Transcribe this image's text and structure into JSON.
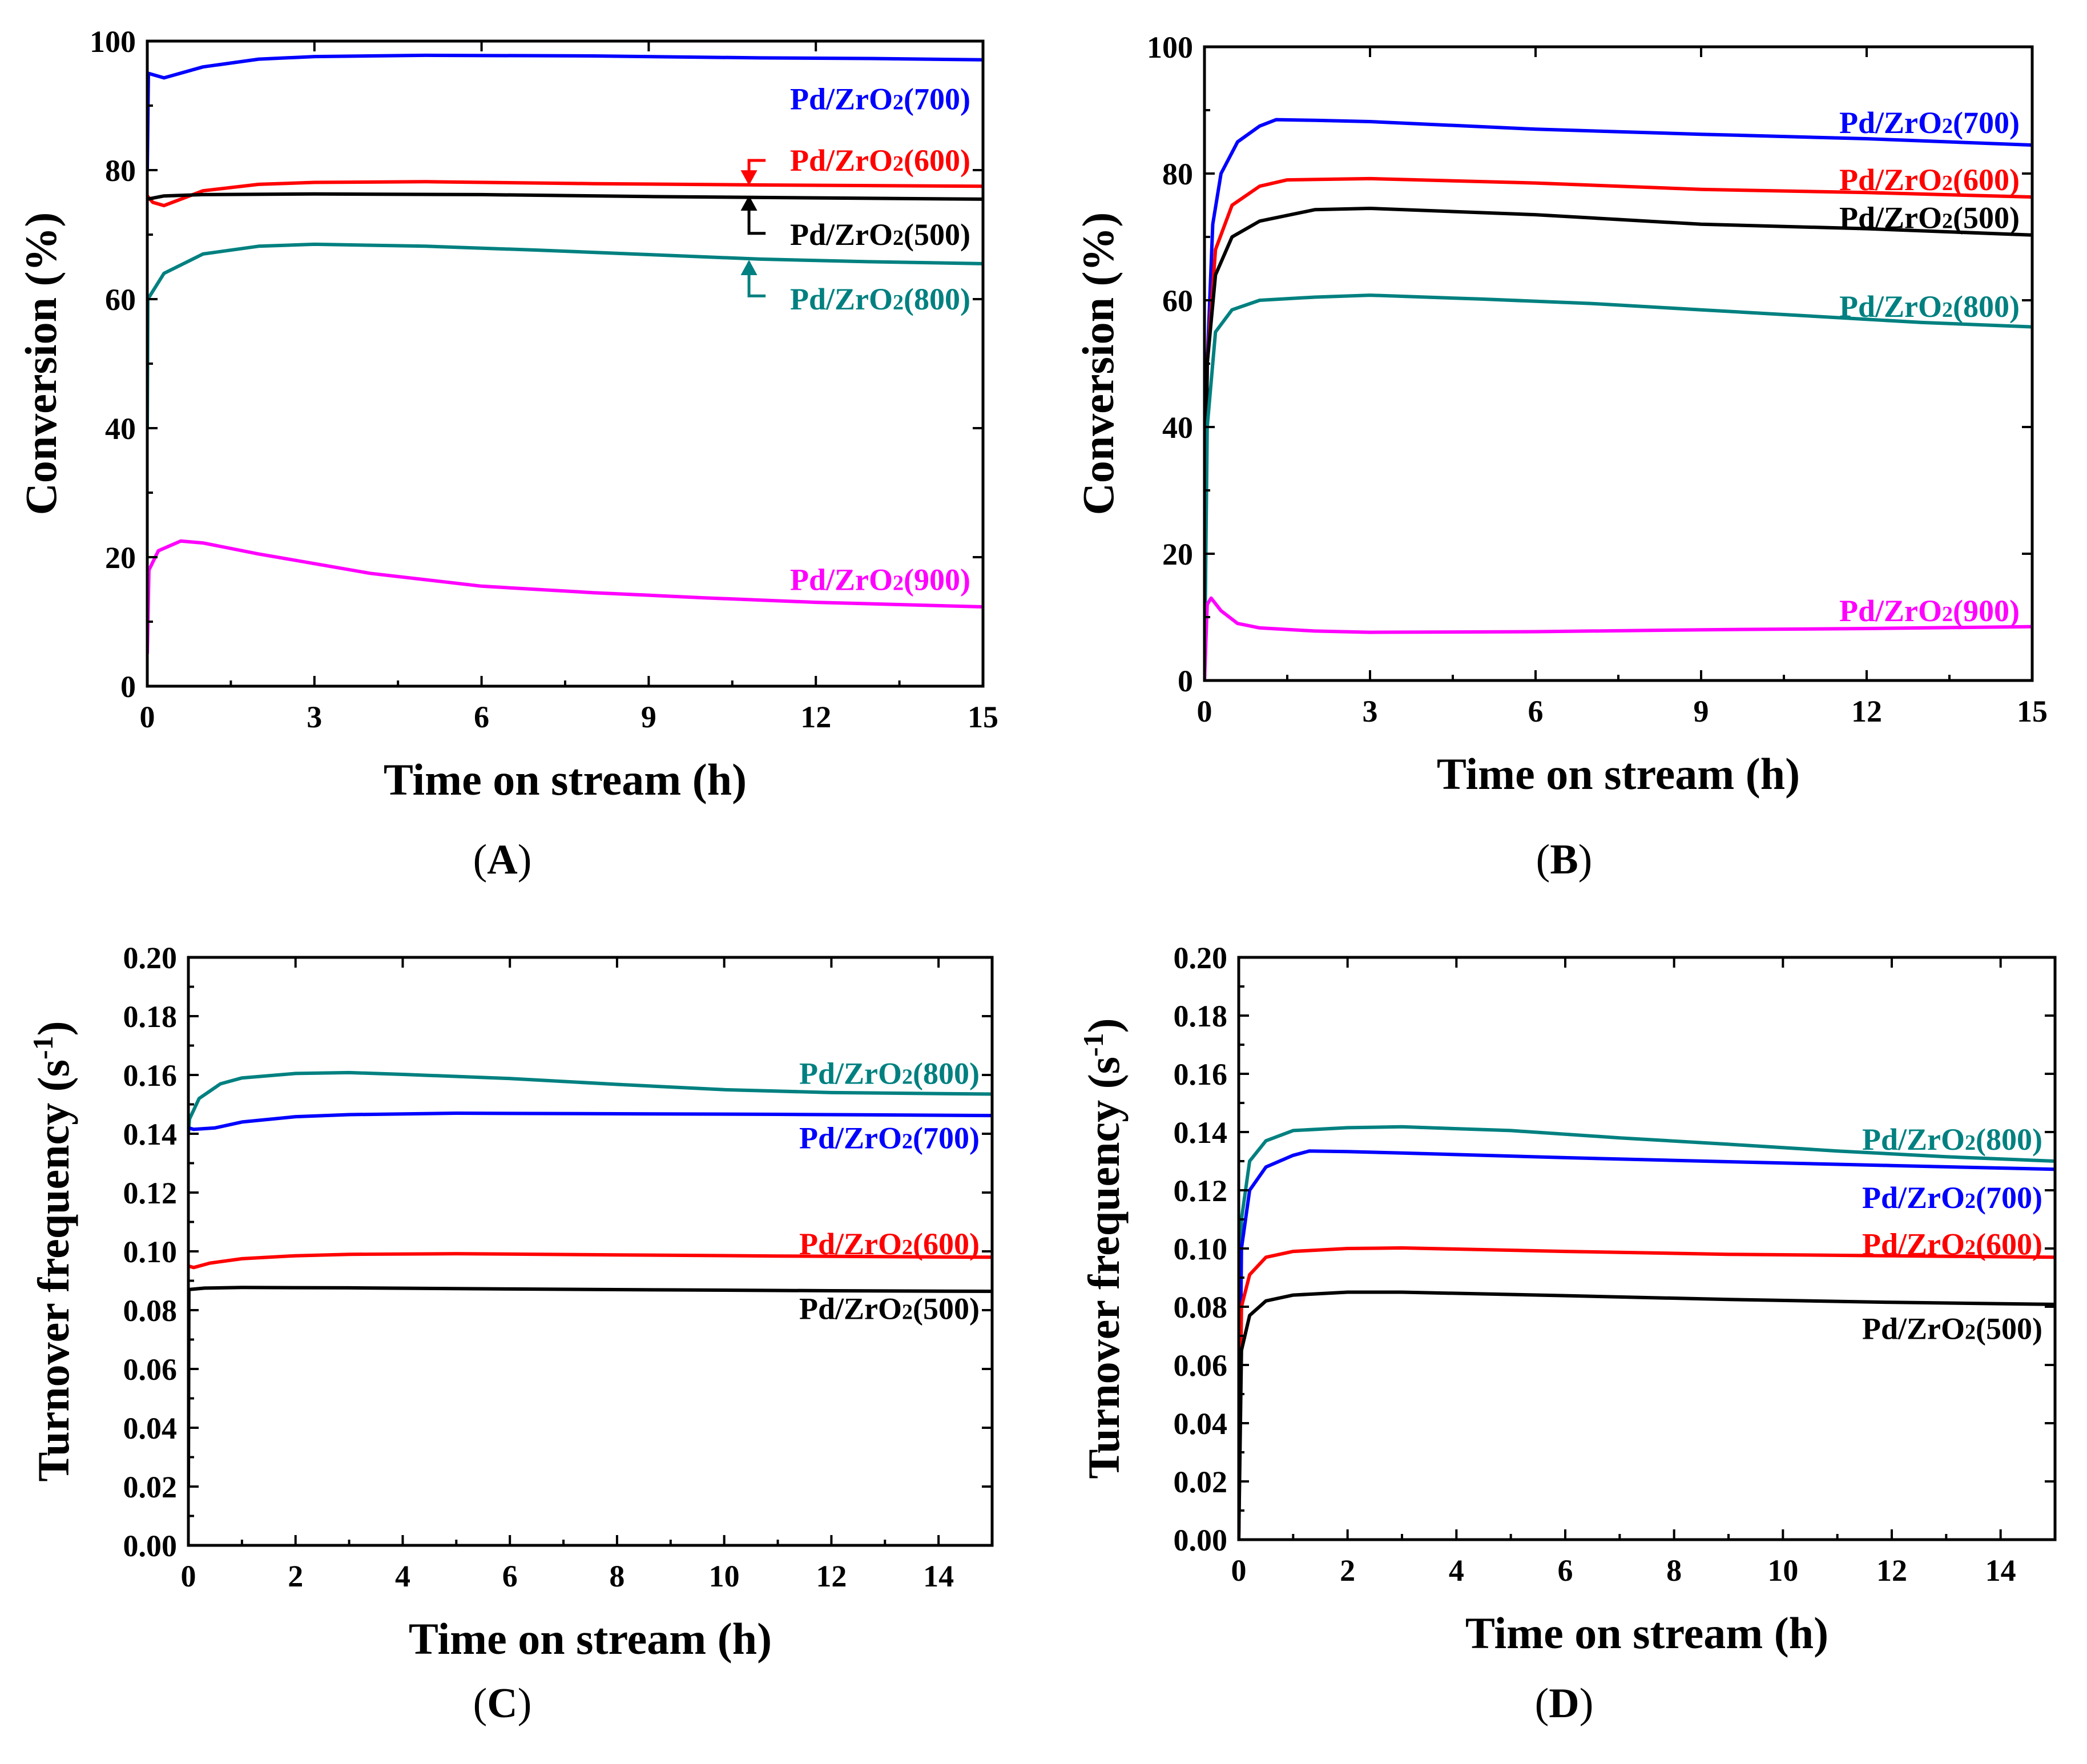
{
  "figure": {
    "captions": [
      "(A)",
      "(B)",
      "(C)",
      "(D)"
    ]
  },
  "colors": {
    "Pd/ZrO2(500)": "#000000",
    "Pd/ZrO2(600)": "#ff0000",
    "Pd/ZrO2(700)": "#0000ff",
    "Pd/ZrO2(800)": "#008080",
    "Pd/ZrO2(900)": "#ff00ff"
  },
  "chart_data": [
    {
      "id": "A",
      "type": "line",
      "caption_letter": "A",
      "xlabel": "Time on stream (h)",
      "ylabel": "Conversion (%)",
      "xlim": [
        0,
        15
      ],
      "ylim": [
        0,
        100
      ],
      "xticks": [
        0,
        3,
        6,
        9,
        12,
        15
      ],
      "yticks": [
        0,
        20,
        40,
        60,
        80,
        100
      ],
      "tick_decimals": 0,
      "series": [
        {
          "name": "Pd/ZrO2(700)",
          "label_base": "Pd/ZrO",
          "label_sub": "2",
          "label_suffix": "(700)",
          "x": [
            0,
            0.02,
            0.3,
            1,
            2,
            3,
            5,
            8,
            11,
            13,
            15
          ],
          "y": [
            80,
            95,
            94.3,
            96,
            97.2,
            97.6,
            97.8,
            97.7,
            97.4,
            97.3,
            97.1
          ]
        },
        {
          "name": "Pd/ZrO2(600)",
          "label_base": "Pd/ZrO",
          "label_sub": "2",
          "label_suffix": "(600)",
          "x": [
            0,
            0.1,
            0.3,
            1,
            2,
            3,
            5,
            8,
            11,
            15
          ],
          "y": [
            76,
            75,
            74.5,
            76.8,
            77.8,
            78.1,
            78.2,
            77.9,
            77.7,
            77.5
          ]
        },
        {
          "name": "Pd/ZrO2(500)",
          "label_base": "Pd/ZrO",
          "label_sub": "2",
          "label_suffix": "(500)",
          "x": [
            0,
            0.3,
            1,
            3,
            6,
            9,
            12,
            15
          ],
          "y": [
            75.5,
            76,
            76.2,
            76.3,
            76.2,
            75.9,
            75.7,
            75.5
          ]
        },
        {
          "name": "Pd/ZrO2(800)",
          "label_base": "Pd/ZrO",
          "label_sub": "2",
          "label_suffix": "(800)",
          "x": [
            0,
            0.01,
            0.3,
            1,
            2,
            3,
            5,
            7,
            9,
            11,
            13,
            15
          ],
          "y": [
            40,
            60,
            64,
            67,
            68.2,
            68.5,
            68.2,
            67.6,
            66.9,
            66.2,
            65.8,
            65.5
          ]
        },
        {
          "name": "Pd/ZrO2(900)",
          "label_base": "Pd/ZrO",
          "label_sub": "2",
          "label_suffix": "(900)",
          "x": [
            0,
            0.03,
            0.2,
            0.6,
            1,
            2,
            3,
            4,
            6,
            8,
            10,
            12,
            15
          ],
          "y": [
            5,
            18,
            21,
            22.5,
            22.2,
            20.5,
            19,
            17.5,
            15.5,
            14.5,
            13.7,
            13,
            12.3
          ]
        }
      ],
      "labels": [
        {
          "series": "Pd/ZrO2(700)",
          "at_y": 91,
          "anchor": "end"
        },
        {
          "series": "Pd/ZrO2(600)",
          "at_y": 81.5,
          "anchor": "end"
        },
        {
          "series": "Pd/ZrO2(500)",
          "at_y": 70,
          "anchor": "end"
        },
        {
          "series": "Pd/ZrO2(800)",
          "at_y": 60,
          "anchor": "end"
        },
        {
          "series": "Pd/ZrO2(900)",
          "at_y": 16.5,
          "anchor": "end"
        }
      ],
      "arrows": [
        {
          "series": "Pd/ZrO2(600)",
          "from": [
            11.2,
            81.5
          ],
          "corner": [
            10.8,
            81.5
          ],
          "to": [
            10.8,
            77.9
          ],
          "direction": "down"
        },
        {
          "series": "Pd/ZrO2(500)",
          "from": [
            11.2,
            70.2
          ],
          "corner": [
            10.8,
            70.2
          ],
          "to": [
            10.8,
            75.8
          ],
          "direction": "up"
        },
        {
          "series": "Pd/ZrO2(800)",
          "from": [
            11.2,
            60.5
          ],
          "corner": [
            10.8,
            60.5
          ],
          "to": [
            10.8,
            65.8
          ],
          "direction": "up"
        }
      ]
    },
    {
      "id": "B",
      "type": "line",
      "caption_letter": "B",
      "xlabel": "Time on stream (h)",
      "ylabel": "Conversion (%)",
      "xlim": [
        0,
        15
      ],
      "ylim": [
        0,
        100
      ],
      "xticks": [
        0,
        3,
        6,
        9,
        12,
        15
      ],
      "yticks": [
        0,
        20,
        40,
        60,
        80,
        100
      ],
      "tick_decimals": 0,
      "series": [
        {
          "name": "Pd/ZrO2(700)",
          "label_base": "Pd/ZrO",
          "label_sub": "2",
          "label_suffix": "(700)",
          "x": [
            0,
            0.05,
            0.15,
            0.3,
            0.6,
            1,
            1.3,
            2,
            3,
            6,
            9,
            12,
            15
          ],
          "y": [
            0,
            50,
            72,
            80,
            85,
            87.5,
            88.5,
            88.4,
            88.2,
            87,
            86.2,
            85.5,
            84.5
          ]
        },
        {
          "name": "Pd/ZrO2(600)",
          "label_base": "Pd/ZrO",
          "label_sub": "2",
          "label_suffix": "(600)",
          "x": [
            0,
            0.05,
            0.2,
            0.5,
            1,
            1.5,
            3,
            6,
            9,
            12,
            15
          ],
          "y": [
            0,
            50,
            68,
            75,
            78,
            79,
            79.2,
            78.5,
            77.5,
            77,
            76.3
          ]
        },
        {
          "name": "Pd/ZrO2(500)",
          "label_base": "Pd/ZrO",
          "label_sub": "2",
          "label_suffix": "(500)",
          "x": [
            0,
            0.05,
            0.2,
            0.5,
            1,
            2,
            3,
            6,
            9,
            12,
            15
          ],
          "y": [
            0,
            50,
            64,
            70,
            72.5,
            74.3,
            74.5,
            73.5,
            72,
            71.3,
            70.3
          ]
        },
        {
          "name": "Pd/ZrO2(800)",
          "label_base": "Pd/ZrO",
          "label_sub": "2",
          "label_suffix": "(800)",
          "x": [
            0,
            0.05,
            0.2,
            0.5,
            1,
            2,
            3,
            5,
            7,
            9,
            11,
            13,
            15
          ],
          "y": [
            0,
            40,
            55,
            58.5,
            60,
            60.5,
            60.8,
            60.2,
            59.5,
            58.5,
            57.5,
            56.5,
            55.8
          ]
        },
        {
          "name": "Pd/ZrO2(900)",
          "label_base": "Pd/ZrO",
          "label_sub": "2",
          "label_suffix": "(900)",
          "x": [
            0,
            0.05,
            0.12,
            0.3,
            0.6,
            1,
            2,
            3,
            6,
            9,
            12,
            15
          ],
          "y": [
            0,
            12,
            13,
            11,
            9,
            8.3,
            7.8,
            7.6,
            7.7,
            8,
            8.2,
            8.5
          ]
        }
      ],
      "labels": [
        {
          "series": "Pd/ZrO2(700)",
          "at_y": 88,
          "anchor": "end"
        },
        {
          "series": "Pd/ZrO2(600)",
          "at_y": 79,
          "anchor": "end"
        },
        {
          "series": "Pd/ZrO2(500)",
          "at_y": 73,
          "anchor": "end"
        },
        {
          "series": "Pd/ZrO2(800)",
          "at_y": 59,
          "anchor": "end"
        },
        {
          "series": "Pd/ZrO2(900)",
          "at_y": 11,
          "anchor": "end"
        }
      ],
      "arrows": []
    },
    {
      "id": "C",
      "type": "line",
      "caption_letter": "C",
      "xlabel": "Time on stream (h)",
      "ylabel": "Turnover frequency (s",
      "ylabel_sup": "-1",
      "ylabel_end": ")",
      "xlim": [
        0,
        15
      ],
      "ylim": [
        0,
        0.2
      ],
      "xticks": [
        0,
        2,
        4,
        6,
        8,
        10,
        12,
        14
      ],
      "yticks": [
        0,
        0.02,
        0.04,
        0.06,
        0.08,
        0.1,
        0.12,
        0.14,
        0.16,
        0.18,
        0.2
      ],
      "tick_decimals": 2,
      "series": [
        {
          "name": "Pd/ZrO2(800)",
          "label_base": "Pd/ZrO",
          "label_sub": "2",
          "label_suffix": "(800)",
          "x": [
            0,
            0.02,
            0.2,
            0.6,
            1,
            2,
            3,
            4,
            6,
            8,
            10,
            12,
            15
          ],
          "y": [
            0.14,
            0.145,
            0.152,
            0.157,
            0.159,
            0.1605,
            0.1608,
            0.1602,
            0.1588,
            0.1568,
            0.155,
            0.154,
            0.1535
          ]
        },
        {
          "name": "Pd/ZrO2(700)",
          "label_base": "Pd/ZrO",
          "label_sub": "2",
          "label_suffix": "(700)",
          "x": [
            0,
            0.1,
            0.5,
            1,
            2,
            3,
            5,
            8,
            11,
            15
          ],
          "y": [
            0.142,
            0.1415,
            0.142,
            0.144,
            0.1458,
            0.1465,
            0.147,
            0.1468,
            0.1466,
            0.1462
          ]
        },
        {
          "name": "Pd/ZrO2(600)",
          "label_base": "Pd/ZrO",
          "label_sub": "2",
          "label_suffix": "(600)",
          "x": [
            0,
            0.1,
            0.4,
            1,
            2,
            3,
            5,
            8,
            11,
            15
          ],
          "y": [
            0.095,
            0.0945,
            0.096,
            0.0975,
            0.0985,
            0.099,
            0.0992,
            0.0988,
            0.0984,
            0.098
          ]
        },
        {
          "name": "Pd/ZrO2(500)",
          "label_base": "Pd/ZrO",
          "label_sub": "2",
          "label_suffix": "(500)",
          "x": [
            0,
            0.01,
            0.3,
            1,
            3,
            6,
            9,
            12,
            15
          ],
          "y": [
            0.02,
            0.087,
            0.0875,
            0.0877,
            0.0876,
            0.0872,
            0.0869,
            0.0866,
            0.0864
          ]
        }
      ],
      "labels": [
        {
          "series": "Pd/ZrO2(800)",
          "at_y": 0.1605,
          "anchor": "end"
        },
        {
          "series": "Pd/ZrO2(700)",
          "at_y": 0.1385,
          "anchor": "end"
        },
        {
          "series": "Pd/ZrO2(600)",
          "at_y": 0.1025,
          "anchor": "end"
        },
        {
          "series": "Pd/ZrO2(500)",
          "at_y": 0.0805,
          "anchor": "end"
        }
      ],
      "arrows": []
    },
    {
      "id": "D",
      "type": "line",
      "caption_letter": "D",
      "xlabel": "Time on stream (h)",
      "ylabel": "Turnover frequency (s",
      "ylabel_sup": "-1",
      "ylabel_end": ")",
      "xlim": [
        0,
        15
      ],
      "ylim": [
        0,
        0.2
      ],
      "xticks": [
        0,
        2,
        4,
        6,
        8,
        10,
        12,
        14
      ],
      "yticks": [
        0,
        0.02,
        0.04,
        0.06,
        0.08,
        0.1,
        0.12,
        0.14,
        0.16,
        0.18,
        0.2
      ],
      "tick_decimals": 2,
      "series": [
        {
          "name": "Pd/ZrO2(800)",
          "label_base": "Pd/ZrO",
          "label_sub": "2",
          "label_suffix": "(800)",
          "x": [
            0,
            0.05,
            0.2,
            0.5,
            1,
            2,
            3,
            5,
            7,
            9,
            11,
            13,
            15
          ],
          "y": [
            0,
            0.11,
            0.13,
            0.137,
            0.1405,
            0.1415,
            0.1418,
            0.1405,
            0.138,
            0.1358,
            0.1335,
            0.1315,
            0.13
          ]
        },
        {
          "name": "Pd/ZrO2(700)",
          "label_base": "Pd/ZrO",
          "label_sub": "2",
          "label_suffix": "(700)",
          "x": [
            0,
            0.05,
            0.2,
            0.5,
            1,
            1.3,
            2,
            3,
            6,
            9,
            12,
            15
          ],
          "y": [
            0,
            0.1,
            0.12,
            0.128,
            0.132,
            0.1335,
            0.1333,
            0.1328,
            0.1312,
            0.1298,
            0.1285,
            0.1272
          ]
        },
        {
          "name": "Pd/ZrO2(600)",
          "label_base": "Pd/ZrO",
          "label_sub": "2",
          "label_suffix": "(600)",
          "x": [
            0,
            0.05,
            0.2,
            0.5,
            1,
            2,
            3,
            6,
            9,
            12,
            15
          ],
          "y": [
            0,
            0.08,
            0.091,
            0.097,
            0.099,
            0.1,
            0.1002,
            0.099,
            0.098,
            0.0975,
            0.097
          ]
        },
        {
          "name": "Pd/ZrO2(500)",
          "label_base": "Pd/ZrO",
          "label_sub": "2",
          "label_suffix": "(500)",
          "x": [
            0,
            0.05,
            0.2,
            0.5,
            1,
            2,
            3,
            6,
            9,
            12,
            15
          ],
          "y": [
            0,
            0.065,
            0.077,
            0.082,
            0.084,
            0.085,
            0.085,
            0.0838,
            0.0825,
            0.0815,
            0.0808
          ]
        }
      ],
      "labels": [
        {
          "series": "Pd/ZrO2(800)",
          "at_y": 0.1375,
          "anchor": "end"
        },
        {
          "series": "Pd/ZrO2(700)",
          "at_y": 0.1175,
          "anchor": "end"
        },
        {
          "series": "Pd/ZrO2(600)",
          "at_y": 0.1015,
          "anchor": "end"
        },
        {
          "series": "Pd/ZrO2(500)",
          "at_y": 0.0725,
          "anchor": "end"
        }
      ],
      "arrows": []
    }
  ]
}
